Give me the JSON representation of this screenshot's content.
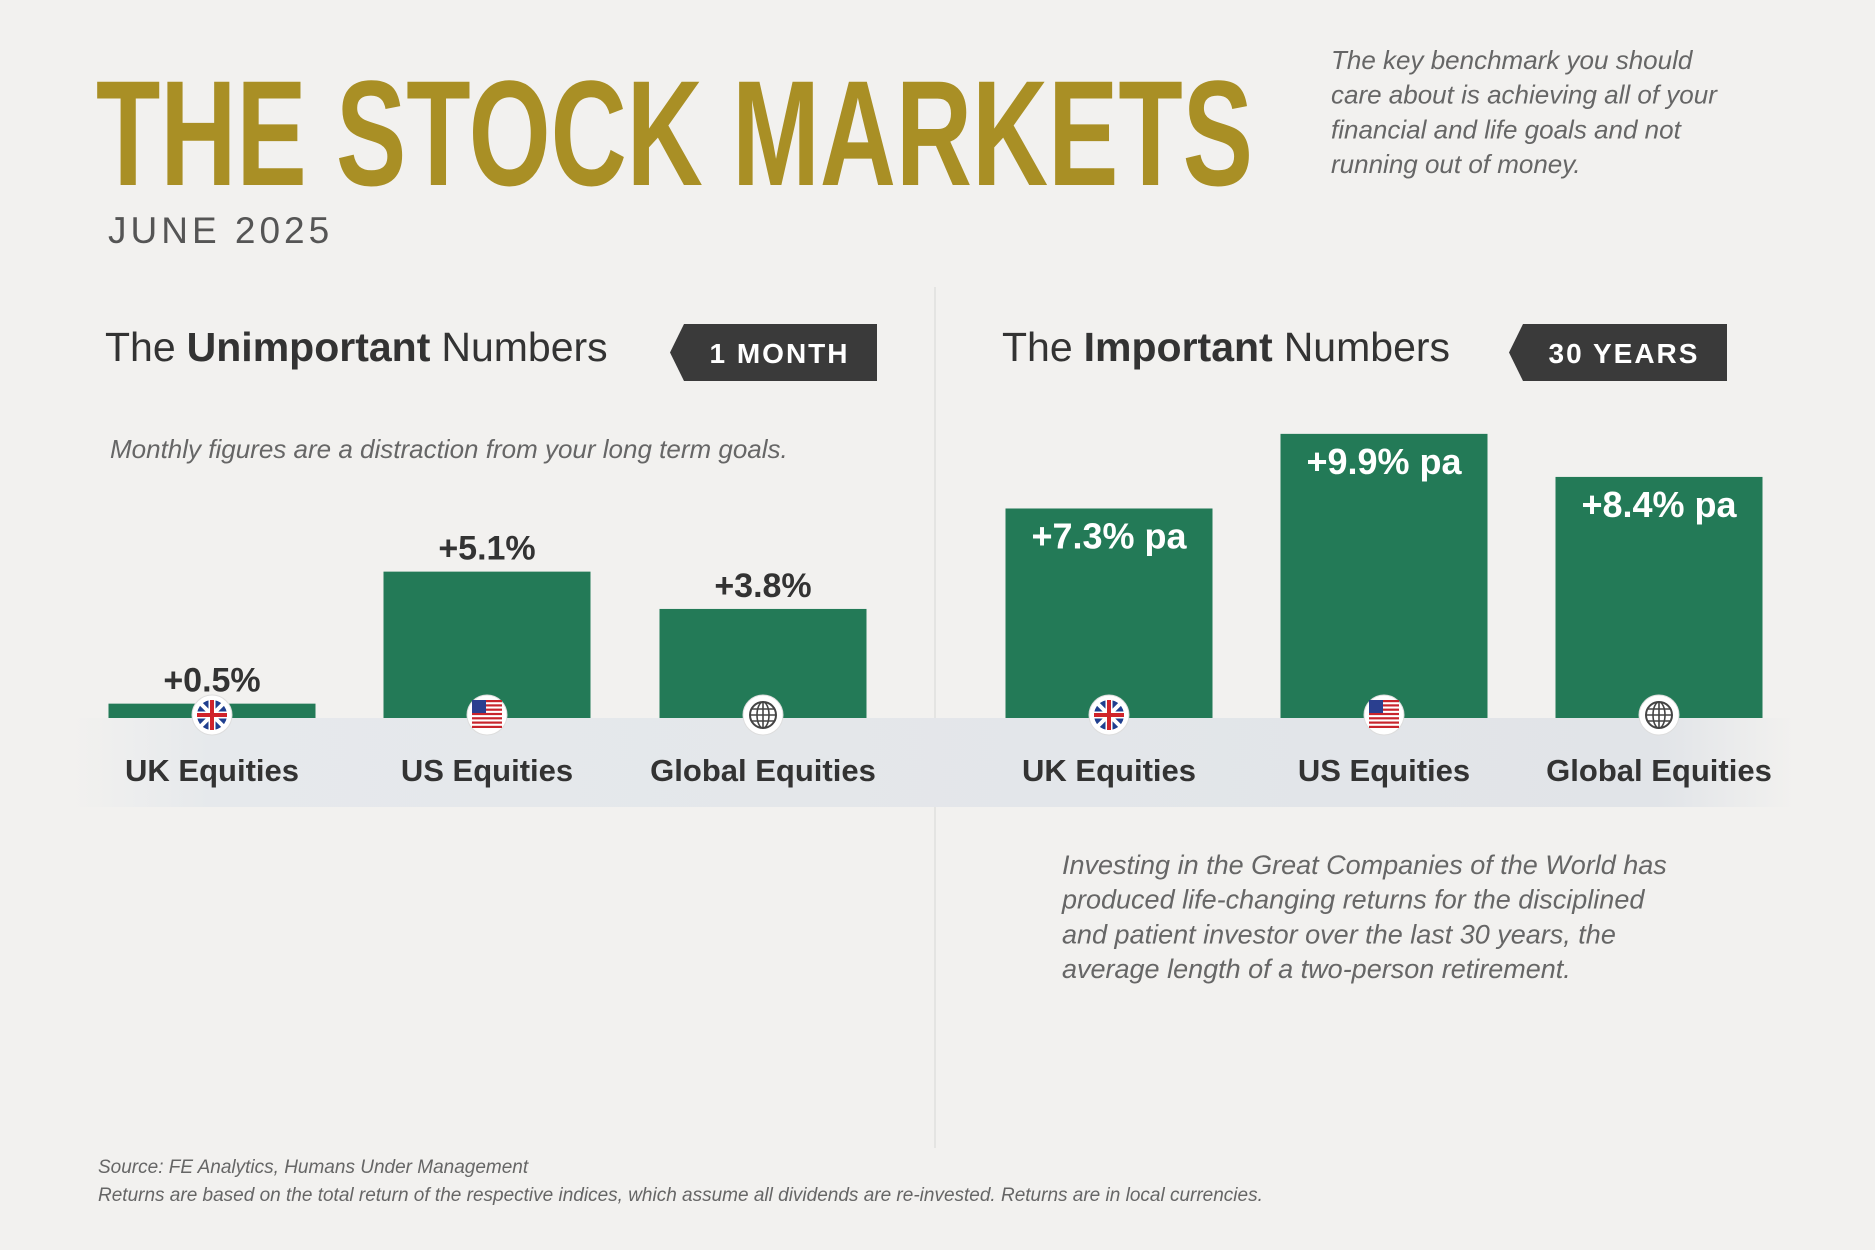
{
  "header": {
    "title": "THE STOCK MARKETS",
    "date": "JUNE 2025",
    "intro": [
      "The key benchmark you should",
      "care about is achieving all of your",
      "financial and life goals and not",
      "running out of money."
    ]
  },
  "chart_data": [
    {
      "type": "bar",
      "title_parts": [
        "The",
        "Unimportant",
        "Numbers"
      ],
      "badge": "1 MONTH",
      "subtitle": "Monthly figures are a distraction from your long term goals.",
      "categories": [
        "UK Equities",
        "US Equities",
        "Global Equities"
      ],
      "values": [
        0.5,
        5.1,
        3.8
      ],
      "value_labels": [
        "+0.5%",
        "+5.1%",
        "+3.8%"
      ],
      "color": "#237a57"
    },
    {
      "type": "bar",
      "title_parts": [
        "The",
        "Important",
        "Numbers"
      ],
      "badge": "30 YEARS",
      "categories": [
        "UK Equities",
        "US Equities",
        "Global Equities"
      ],
      "values": [
        7.3,
        9.9,
        8.4
      ],
      "value_labels": [
        "+7.3% pa",
        "+9.9% pa",
        "+8.4% pa"
      ],
      "color": "#237a57",
      "note": [
        "Investing in the Great Companies of the World has",
        "produced life-changing returns for the disciplined",
        "and patient investor over the last 30 years, the",
        "average length of a two-person retirement."
      ]
    }
  ],
  "footer": {
    "source": "Source: FE Analytics, Humans Under Management",
    "disclaimer": "Returns are based on the total return of the respective indices, which assume all dividends are re-invested. Returns are in local currencies."
  }
}
